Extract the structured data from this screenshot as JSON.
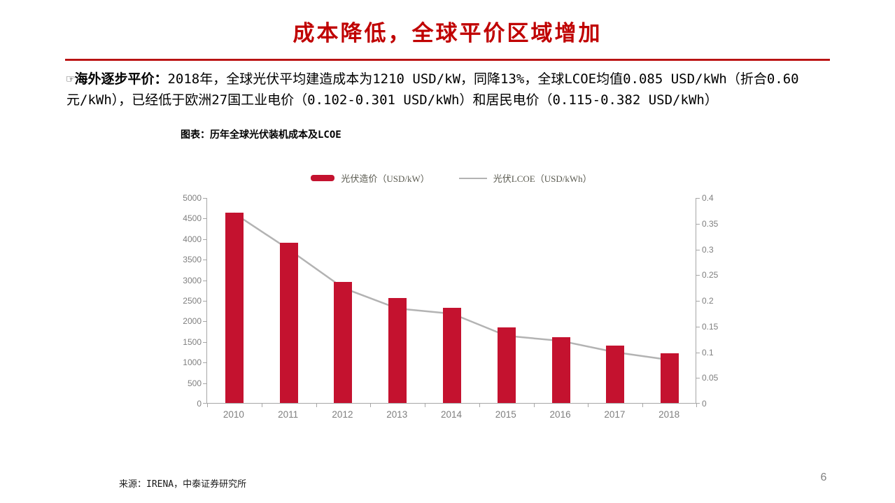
{
  "slide": {
    "title": "成本降低，全球平价区域增加",
    "page_number": "6",
    "source": "来源：IRENA，中泰证券研究所"
  },
  "paragraph": {
    "lead": "☞海外逐步平价：",
    "body": "2018年，全球光伏平均建造成本为1210 USD/kW，同降13%，全球LCOE均值0.085 USD/kWh（折合0.60元/kWh），已经低于欧洲27国工业电价（0.102-0.301 USD/kWh）和居民电价（0.115-0.382 USD/kWh）"
  },
  "figure": {
    "caption": "图表：历年全球光伏装机成本及LCOE"
  },
  "chart_data": {
    "type": "bar+line combo",
    "categories": [
      "2010",
      "2011",
      "2012",
      "2013",
      "2014",
      "2015",
      "2016",
      "2017",
      "2018"
    ],
    "series": [
      {
        "name": "光伏造价（USD/kW）",
        "type": "bar",
        "axis": "left",
        "color": "#C4122F",
        "values": [
          4620,
          3890,
          2940,
          2560,
          2320,
          1830,
          1600,
          1390,
          1210
        ]
      },
      {
        "name": "光伏LCOE（USD/kWh）",
        "type": "line",
        "axis": "right",
        "color": "#B3B3B3",
        "values": [
          0.37,
          0.3,
          0.225,
          0.185,
          0.175,
          0.132,
          0.122,
          0.1,
          0.085
        ]
      }
    ],
    "left_axis": {
      "min": 0,
      "max": 5000,
      "step": 500,
      "ticks": [
        "5000",
        "4500",
        "4000",
        "3500",
        "3000",
        "2500",
        "2000",
        "1500",
        "1000",
        "500",
        "0"
      ]
    },
    "right_axis": {
      "min": 0,
      "max": 0.4,
      "step": 0.05,
      "ticks": [
        "0.4",
        "0.35",
        "0.3",
        "0.25",
        "0.2",
        "0.15",
        "0.1",
        "0.05",
        "0"
      ]
    },
    "legend_position": "top-center",
    "grid": false
  },
  "colors": {
    "title_red": "#C00000",
    "divider_red": "#C00000",
    "bar_red": "#C4122F",
    "line_gray": "#B3B3B3",
    "axis_gray": "#A6A6A6",
    "tick_label_gray": "#7F7F7F",
    "legend_text": "#5A5A50",
    "page_number_gray": "#808080"
  }
}
